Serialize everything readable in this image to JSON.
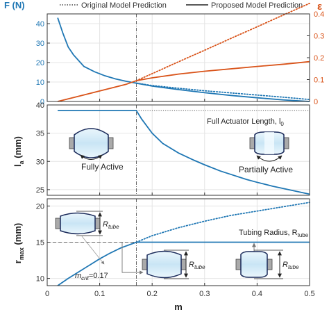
{
  "legend": {
    "original": "Original Model Prediction",
    "proposed": "Proposed Model Prediction"
  },
  "colors": {
    "blue": "#1f77b4",
    "orange": "#d95319",
    "ref": "#666666",
    "tube_fill": "#d6ecf8",
    "tube_edge": "#1a2a5a"
  },
  "chart_data": [
    {
      "type": "line",
      "panel": "force-strain",
      "xlabel": "",
      "xlim": [
        0,
        0.5
      ],
      "xticks": [
        0,
        0.1,
        0.2,
        0.3,
        0.4,
        0.5
      ],
      "ylabel_left": "F (N)",
      "ylim_left": [
        0,
        45
      ],
      "yticks_left": [
        0,
        10,
        20,
        30,
        40
      ],
      "ylabel_right": "ε",
      "ylim_right": [
        0,
        0.4
      ],
      "yticks_right": [
        0,
        0.1,
        0.2,
        0.3,
        0.4
      ],
      "yticks_right_labels": [
        "0",
        "0.1",
        "0.2",
        "0.3",
        "0.4"
      ],
      "vline_x": 0.17,
      "series": [
        {
          "name": "F",
          "axis": "left",
          "style": "solid",
          "color": "blue",
          "x": [
            0.02,
            0.03,
            0.04,
            0.05,
            0.07,
            0.09,
            0.11,
            0.13,
            0.15,
            0.17
          ],
          "y": [
            43,
            35,
            28,
            24,
            18,
            15.3,
            13.2,
            11.6,
            10.4,
            9.4
          ]
        },
        {
          "name": "F original",
          "axis": "left",
          "style": "dotted",
          "color": "blue",
          "x": [
            0.17,
            0.2,
            0.25,
            0.3,
            0.35,
            0.4,
            0.45,
            0.5
          ],
          "y": [
            9.4,
            8.2,
            6.8,
            5.5,
            4.4,
            3.3,
            2.2,
            1.0
          ]
        },
        {
          "name": "F proposed",
          "axis": "left",
          "style": "solid",
          "color": "blue",
          "x": [
            0.17,
            0.2,
            0.25,
            0.3,
            0.35,
            0.4,
            0.45,
            0.5
          ],
          "y": [
            9.4,
            7.9,
            6.1,
            4.5,
            3.1,
            1.9,
            0.8,
            0
          ]
        },
        {
          "name": "ε original",
          "axis": "right",
          "style": "dotted",
          "color": "orange",
          "x": [
            0.17,
            0.2,
            0.25,
            0.3,
            0.35,
            0.4,
            0.45,
            0.5
          ],
          "y": [
            0.095,
            0.127,
            0.181,
            0.234,
            0.288,
            0.341,
            0.395,
            0.448
          ]
        },
        {
          "name": "ε proposed",
          "axis": "right",
          "style": "solid",
          "color": "orange",
          "x": [
            0.02,
            0.05,
            0.1,
            0.15,
            0.17,
            0.2,
            0.25,
            0.3,
            0.35,
            0.4,
            0.45,
            0.5
          ],
          "y": [
            0,
            0.018,
            0.048,
            0.078,
            0.095,
            0.108,
            0.125,
            0.138,
            0.149,
            0.16,
            0.17,
            0.182
          ]
        }
      ]
    },
    {
      "type": "line",
      "panel": "active-length",
      "xlabel": "",
      "xlim": [
        0,
        0.5
      ],
      "xticks": [
        0,
        0.1,
        0.2,
        0.3,
        0.4,
        0.5
      ],
      "ylabel": "l_a (mm)",
      "ylim": [
        24,
        40
      ],
      "yticks": [
        25,
        30,
        35,
        40
      ],
      "vline_x": 0.17,
      "hline_dotted": 39,
      "annotations": {
        "full_length": "Full Actuator Length, l",
        "full_length_sub": "0",
        "fully_active": "Fully Active",
        "partially_active": "Partially Active"
      },
      "series": [
        {
          "name": "l_a",
          "style": "solid",
          "color": "blue",
          "x": [
            0.02,
            0.17,
            0.18,
            0.2,
            0.22,
            0.25,
            0.28,
            0.3,
            0.33,
            0.35,
            0.38,
            0.4,
            0.43,
            0.45,
            0.48,
            0.5
          ],
          "y": [
            39,
            39,
            37.5,
            35.0,
            33.2,
            31.5,
            30.2,
            29.4,
            28.3,
            27.7,
            26.8,
            26.3,
            25.6,
            25.2,
            24.6,
            24.2
          ]
        }
      ]
    },
    {
      "type": "line",
      "panel": "max-radius",
      "xlabel": "m",
      "xlim": [
        0,
        0.5
      ],
      "xticks": [
        0,
        0.1,
        0.2,
        0.3,
        0.4,
        0.5
      ],
      "xtick_labels": [
        "0",
        "0.1",
        "0.2",
        "0.3",
        "0.4",
        "0.5"
      ],
      "ylabel": "r_max (mm)",
      "ylim": [
        9,
        21
      ],
      "yticks": [
        10,
        15,
        20
      ],
      "vline_x": 0.17,
      "hline_dashed": 15,
      "annotations": {
        "tubing_radius": "Tubing Radius, R",
        "tubing_radius_sub": "tube",
        "mcrit_label": "m",
        "mcrit_sub": "crit",
        "mcrit_value": "=0.17",
        "r_label": "R",
        "r_sub": "tube"
      },
      "series": [
        {
          "name": "r_max",
          "style": "solid",
          "color": "blue",
          "x": [
            0.02,
            0.04,
            0.06,
            0.08,
            0.1,
            0.12,
            0.14,
            0.17
          ],
          "y": [
            9.0,
            10.0,
            10.9,
            11.8,
            12.7,
            13.5,
            14.2,
            15.0
          ]
        },
        {
          "name": "r_max original",
          "style": "dotted",
          "color": "blue",
          "x": [
            0.17,
            0.2,
            0.25,
            0.3,
            0.35,
            0.4,
            0.45,
            0.5
          ],
          "y": [
            15.0,
            15.9,
            17.0,
            17.9,
            18.7,
            19.3,
            19.9,
            20.5
          ]
        },
        {
          "name": "r_max proposed",
          "style": "solid",
          "color": "blue",
          "x": [
            0.17,
            0.5
          ],
          "y": [
            15.0,
            15.0
          ]
        }
      ]
    }
  ]
}
